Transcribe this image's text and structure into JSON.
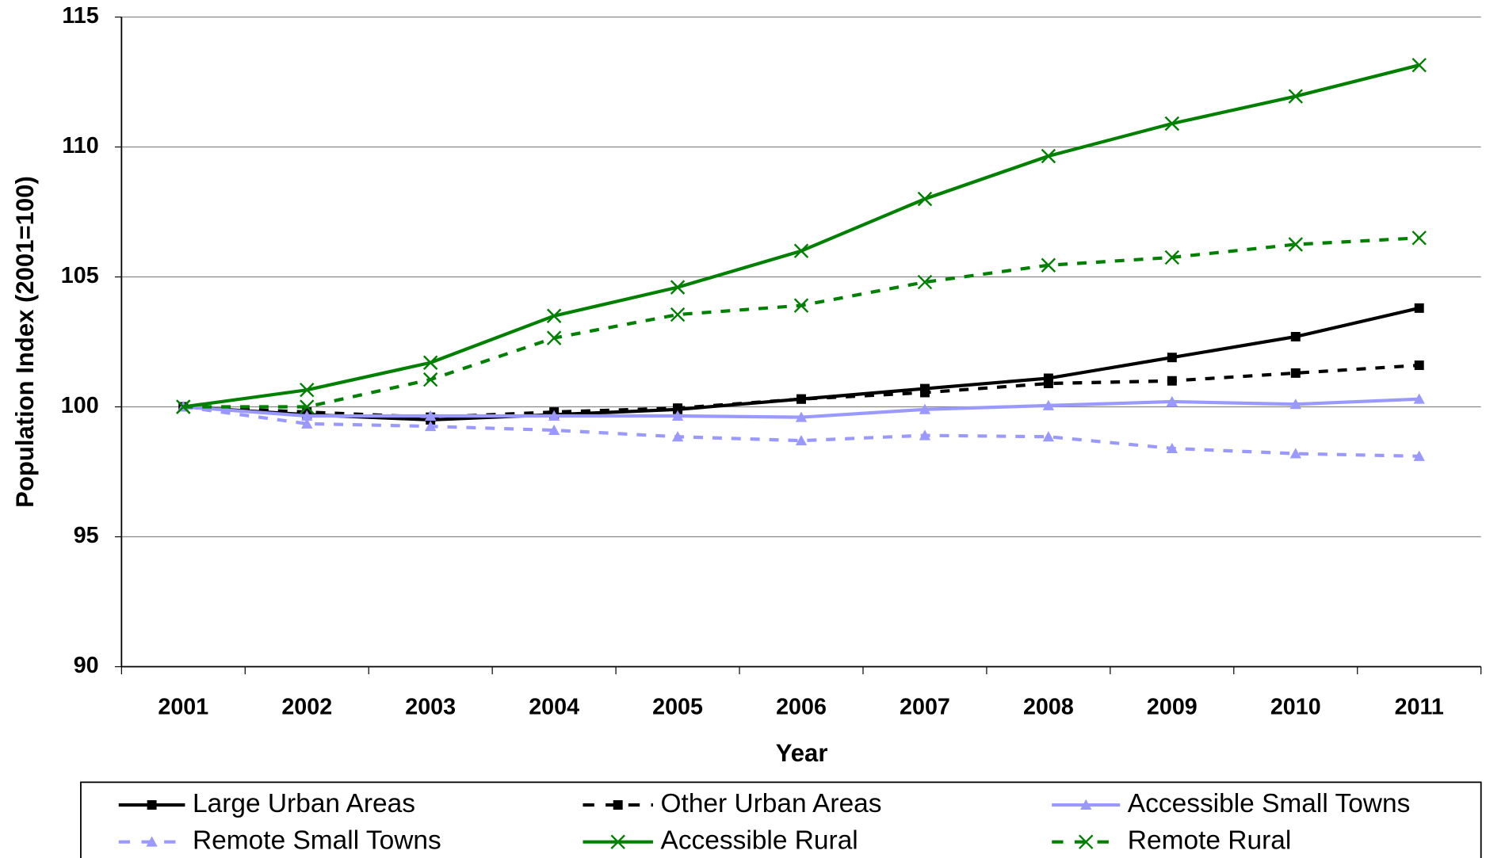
{
  "chart_data": {
    "type": "line",
    "x_label": "Year",
    "y_label": "Population Index (2001=100)",
    "categories": [
      "2001",
      "2002",
      "2003",
      "2004",
      "2005",
      "2006",
      "2007",
      "2008",
      "2009",
      "2010",
      "2011"
    ],
    "ylim": [
      90,
      115
    ],
    "yticks": [
      90,
      95,
      100,
      105,
      110,
      115
    ],
    "grid": true,
    "series": [
      {
        "name": "Large Urban Areas",
        "color": "#000000",
        "dash": "solid",
        "marker": "square",
        "values": [
          100,
          99.7,
          99.5,
          99.7,
          99.9,
          100.3,
          100.7,
          101.1,
          101.9,
          102.7,
          103.8
        ]
      },
      {
        "name": "Other Urban Areas",
        "color": "#000000",
        "dash": "dashed",
        "marker": "square",
        "values": [
          100,
          99.8,
          99.6,
          99.8,
          99.95,
          100.3,
          100.55,
          100.9,
          101.0,
          101.3,
          101.6
        ]
      },
      {
        "name": "Accessible Small Towns",
        "color": "#9999ff",
        "dash": "solid",
        "marker": "triangle",
        "values": [
          100,
          99.65,
          99.65,
          99.65,
          99.65,
          99.6,
          99.9,
          100.05,
          100.2,
          100.1,
          100.3
        ]
      },
      {
        "name": "Remote Small Towns",
        "color": "#9999ff",
        "dash": "dashed",
        "marker": "triangle",
        "values": [
          100,
          99.35,
          99.25,
          99.1,
          98.85,
          98.7,
          98.9,
          98.85,
          98.4,
          98.2,
          98.1
        ]
      },
      {
        "name": "Accessible Rural",
        "color": "#008000",
        "dash": "solid",
        "marker": "x",
        "values": [
          100,
          100.65,
          101.7,
          103.5,
          104.6,
          106.0,
          108.0,
          109.65,
          110.9,
          111.95,
          113.15
        ]
      },
      {
        "name": "Remote Rural",
        "color": "#008000",
        "dash": "dashed",
        "marker": "x",
        "values": [
          100,
          100.0,
          101.05,
          102.65,
          103.55,
          103.9,
          104.8,
          105.45,
          105.75,
          106.25,
          106.5
        ]
      }
    ]
  }
}
